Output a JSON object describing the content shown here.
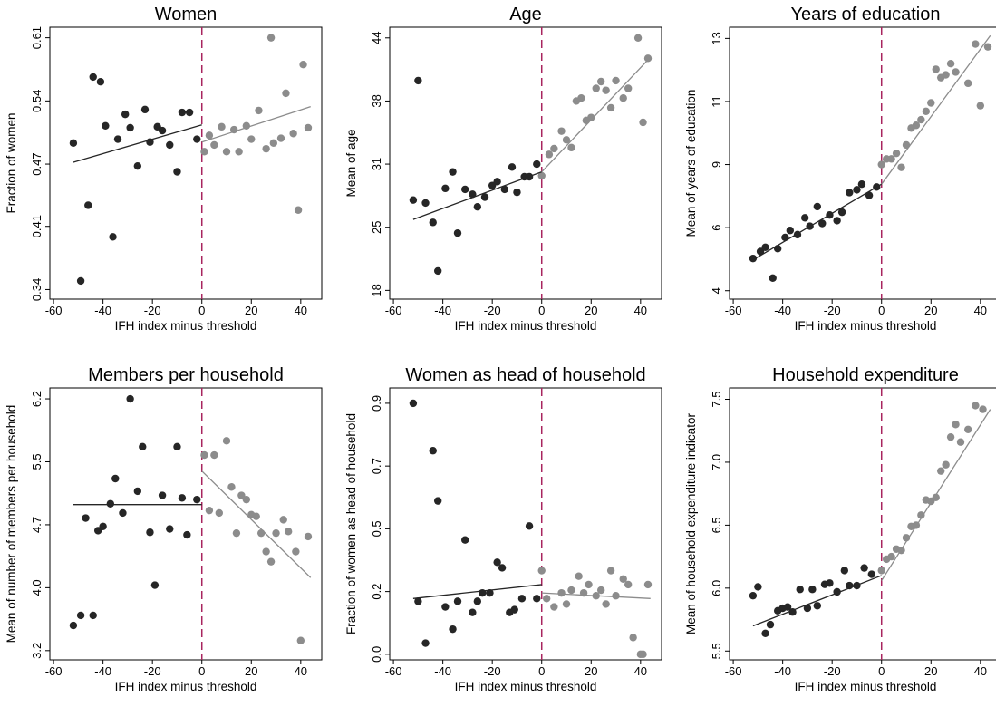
{
  "chart_data": [
    {
      "type": "scatter",
      "title": "Women",
      "x_label": "IFH index minus threshold",
      "y_label": "Fraction of women",
      "xlim": [
        -61.5,
        48.5
      ],
      "xticks": [
        -60,
        -40,
        -20,
        0,
        20,
        40
      ],
      "ylim": [
        0.333,
        0.617
      ],
      "yticks": [
        {
          "value": 0.343,
          "label": "0.34"
        },
        {
          "value": 0.409,
          "label": "0.41"
        },
        {
          "value": 0.474,
          "label": "0.47"
        },
        {
          "value": 0.54,
          "label": "0.54"
        },
        {
          "value": 0.606,
          "label": "0.61"
        }
      ],
      "threshold": 0,
      "threshold_color": "#a8245e",
      "series": [
        {
          "color": "#262626",
          "x": [
            -52,
            -49,
            -46,
            -44,
            -41,
            -39,
            -36,
            -34,
            -31,
            -29,
            -26,
            -23,
            -21,
            -18,
            -16,
            -13,
            -10,
            -8,
            -5,
            -2
          ],
          "values": [
            0.496,
            0.352,
            0.431,
            0.565,
            0.56,
            0.514,
            0.398,
            0.5,
            0.526,
            0.512,
            0.472,
            0.531,
            0.497,
            0.513,
            0.509,
            0.494,
            0.466,
            0.528,
            0.528,
            0.5
          ]
        },
        {
          "color": "#8c8c8c",
          "x": [
            1,
            3,
            5,
            8,
            10,
            13,
            15,
            18,
            20,
            23,
            26,
            28,
            29,
            32,
            34,
            37,
            39,
            41,
            43
          ],
          "values": [
            0.487,
            0.504,
            0.494,
            0.513,
            0.487,
            0.51,
            0.487,
            0.514,
            0.5,
            0.53,
            0.49,
            0.606,
            0.496,
            0.501,
            0.548,
            0.506,
            0.426,
            0.578,
            0.512
          ]
        }
      ],
      "fits": [
        {
          "color": "#262626",
          "x": [
            -52,
            0
          ],
          "values": [
            0.476,
            0.515
          ]
        },
        {
          "color": "#8c8c8c",
          "x": [
            0,
            44
          ],
          "values": [
            0.497,
            0.534
          ]
        }
      ]
    },
    {
      "type": "scatter",
      "title": "Age",
      "x_label": "IFH index minus threshold",
      "y_label": "Mean of age",
      "xlim": [
        -61.5,
        48.5
      ],
      "xticks": [
        -60,
        -40,
        -20,
        0,
        20,
        40
      ],
      "ylim": [
        17.1,
        45.1
      ],
      "yticks": [
        18,
        {
          "value": 24.5,
          "label": "25"
        },
        31,
        {
          "value": 37.5,
          "label": "38"
        },
        44
      ],
      "threshold": 0,
      "threshold_color": "#a8245e",
      "series": [
        {
          "color": "#262626",
          "x": [
            -52,
            -50,
            -47,
            -44,
            -42,
            -39,
            -36,
            -34,
            -31,
            -28,
            -26,
            -23,
            -20,
            -18,
            -15,
            -12,
            -10,
            -7,
            -5,
            -2
          ],
          "values": [
            27.3,
            39.6,
            27.0,
            25.0,
            20.0,
            28.5,
            30.2,
            23.9,
            28.4,
            27.9,
            26.6,
            27.6,
            28.8,
            29.2,
            28.4,
            30.7,
            28.1,
            29.7,
            29.7,
            31.0
          ]
        },
        {
          "color": "#8c8c8c",
          "x": [
            0,
            3,
            5,
            8,
            10,
            12,
            14,
            16,
            18,
            20,
            22,
            24,
            26,
            28,
            30,
            33,
            35,
            39,
            41,
            43
          ],
          "values": [
            29.8,
            32.0,
            32.6,
            34.4,
            33.5,
            32.7,
            37.5,
            37.8,
            35.5,
            35.8,
            38.8,
            39.5,
            38.6,
            36.8,
            39.6,
            37.8,
            38.8,
            44.0,
            35.3,
            41.9
          ]
        }
      ],
      "fits": [
        {
          "color": "#262626",
          "x": [
            -52,
            0
          ],
          "values": [
            25.3,
            30.2
          ]
        },
        {
          "color": "#8c8c8c",
          "x": [
            0,
            44
          ],
          "values": [
            30.2,
            42.0
          ]
        }
      ]
    },
    {
      "type": "scatter",
      "title": "Years of education",
      "x_label": "IFH index minus threshold",
      "y_label": "Mean of years of education",
      "xlim": [
        -61.5,
        48.5
      ],
      "xticks": [
        -60,
        -40,
        -20,
        0,
        20,
        40
      ],
      "ylim": [
        3.7,
        13.4
      ],
      "yticks": [
        4,
        {
          "value": 6.25,
          "label": "6"
        },
        {
          "value": 8.5,
          "label": "9"
        },
        {
          "value": 10.75,
          "label": "11"
        },
        13
      ],
      "threshold": 0,
      "threshold_color": "#a8245e",
      "series": [
        {
          "color": "#262626",
          "x": [
            -52,
            -49,
            -47,
            -44,
            -42,
            -39,
            -37,
            -34,
            -31,
            -29,
            -26,
            -24,
            -21,
            -18,
            -16,
            -13,
            -10,
            -8,
            -5,
            -2
          ],
          "values": [
            5.15,
            5.4,
            5.55,
            4.45,
            5.5,
            5.9,
            6.15,
            6.0,
            6.6,
            6.3,
            7.0,
            6.4,
            6.7,
            6.5,
            6.8,
            7.5,
            7.6,
            7.8,
            7.4,
            7.7
          ]
        },
        {
          "color": "#8c8c8c",
          "x": [
            0,
            2,
            4,
            6,
            8,
            10,
            12,
            14,
            16,
            18,
            20,
            22,
            24,
            26,
            28,
            30,
            35,
            38,
            40,
            43
          ],
          "values": [
            8.5,
            8.7,
            8.7,
            8.9,
            8.4,
            9.2,
            9.8,
            9.9,
            10.1,
            10.4,
            10.7,
            11.9,
            11.6,
            11.7,
            12.1,
            11.8,
            11.4,
            12.8,
            10.6,
            12.7
          ]
        }
      ],
      "fits": [
        {
          "color": "#262626",
          "x": [
            -52,
            0
          ],
          "values": [
            5.1,
            7.8
          ]
        },
        {
          "color": "#8c8c8c",
          "x": [
            0,
            44
          ],
          "values": [
            7.8,
            13.1
          ]
        }
      ]
    },
    {
      "type": "scatter",
      "title": "Members per household",
      "x_label": "IFH index minus threshold",
      "y_label": "Mean of number of members per household",
      "xlim": [
        -61.5,
        48.5
      ],
      "xticks": [
        -60,
        -40,
        -20,
        0,
        20,
        40
      ],
      "ylim": [
        3.09,
        6.33
      ],
      "yticks": [
        3.2,
        {
          "value": 3.95,
          "label": "4.0"
        },
        4.7,
        {
          "value": 5.45,
          "label": "5.5"
        },
        6.2
      ],
      "threshold": 0,
      "threshold_color": "#a8245e",
      "series": [
        {
          "color": "#262626",
          "x": [
            -52,
            -49,
            -47,
            -44,
            -42,
            -40,
            -37,
            -35,
            -32,
            -29,
            -26,
            -24,
            -21,
            -19,
            -16,
            -13,
            -10,
            -8,
            -6,
            -2
          ],
          "values": [
            3.5,
            3.62,
            4.78,
            3.62,
            4.63,
            4.68,
            4.95,
            5.25,
            4.84,
            6.2,
            5.1,
            5.63,
            4.61,
            3.98,
            5.05,
            4.65,
            5.63,
            5.02,
            4.58,
            5.0
          ]
        },
        {
          "color": "#8c8c8c",
          "x": [
            1,
            3,
            5,
            7,
            10,
            12,
            14,
            16,
            18,
            20,
            22,
            24,
            26,
            28,
            30,
            33,
            35,
            38,
            40,
            43
          ],
          "values": [
            5.53,
            4.87,
            5.53,
            4.84,
            5.7,
            5.15,
            4.6,
            5.05,
            5.0,
            4.82,
            4.8,
            4.6,
            4.38,
            4.26,
            4.6,
            4.76,
            4.62,
            4.38,
            3.32,
            4.56
          ]
        }
      ],
      "fits": [
        {
          "color": "#262626",
          "x": [
            -52,
            0
          ],
          "values": [
            4.94,
            4.94
          ]
        },
        {
          "color": "#8c8c8c",
          "x": [
            0,
            44
          ],
          "values": [
            5.34,
            4.07
          ]
        }
      ]
    },
    {
      "type": "scatter",
      "title": "Women as head of household",
      "x_label": "IFH index minus threshold",
      "y_label": "Fraction of women as head of household",
      "xlim": [
        -61.5,
        48.5
      ],
      "xticks": [
        -60,
        -40,
        -20,
        0,
        20,
        40
      ],
      "ylim": [
        -0.02,
        0.955
      ],
      "yticks": [
        {
          "value": 0,
          "label": "0.0"
        },
        {
          "value": 0.225,
          "label": "0.2"
        },
        {
          "value": 0.45,
          "label": "0.5"
        },
        {
          "value": 0.675,
          "label": "0.7"
        },
        0.9
      ],
      "threshold": 0,
      "threshold_color": "#a8245e",
      "series": [
        {
          "color": "#262626",
          "x": [
            -52,
            -50,
            -47,
            -44,
            -42,
            -39,
            -36,
            -34,
            -31,
            -28,
            -26,
            -24,
            -21,
            -18,
            -16,
            -13,
            -11,
            -8,
            -5,
            -2
          ],
          "values": [
            0.9,
            0.19,
            0.04,
            0.73,
            0.55,
            0.17,
            0.09,
            0.19,
            0.41,
            0.15,
            0.19,
            0.22,
            0.22,
            0.33,
            0.31,
            0.15,
            0.16,
            0.2,
            0.46,
            0.2
          ]
        },
        {
          "color": "#8c8c8c",
          "x": [
            0,
            2,
            5,
            8,
            10,
            12,
            15,
            17,
            19,
            22,
            24,
            26,
            28,
            30,
            33,
            35,
            37,
            40,
            41,
            43
          ],
          "values": [
            0.3,
            0.2,
            0.17,
            0.22,
            0.18,
            0.23,
            0.28,
            0.22,
            0.25,
            0.21,
            0.23,
            0.18,
            0.3,
            0.21,
            0.27,
            0.25,
            0.06,
            0,
            0,
            0.25
          ]
        }
      ],
      "fits": [
        {
          "color": "#262626",
          "x": [
            -52,
            0
          ],
          "values": [
            0.2,
            0.25
          ]
        },
        {
          "color": "#8c8c8c",
          "x": [
            0,
            44
          ],
          "values": [
            0.22,
            0.2
          ]
        }
      ]
    },
    {
      "type": "scatter",
      "title": "Household expenditure",
      "x_label": "IFH index minus threshold",
      "y_label": "Mean of household expenditure indicator",
      "xlim": [
        -61.5,
        48.5
      ],
      "xticks": [
        -60,
        -40,
        -20,
        0,
        20,
        40
      ],
      "ylim": [
        5.43,
        7.59
      ],
      "yticks": [
        5.5,
        {
          "value": 6,
          "label": "6.0"
        },
        6.5,
        {
          "value": 7,
          "label": "7.0"
        },
        7.5
      ],
      "threshold": 0,
      "threshold_color": "#a8245e",
      "series": [
        {
          "color": "#262626",
          "x": [
            -52,
            -50,
            -47,
            -45,
            -42,
            -40,
            -38,
            -36,
            -33,
            -30,
            -28,
            -26,
            -23,
            -21,
            -18,
            -15,
            -13,
            -10,
            -7,
            -4
          ],
          "values": [
            5.94,
            6.01,
            5.64,
            5.71,
            5.82,
            5.84,
            5.85,
            5.81,
            5.99,
            5.84,
            5.99,
            5.86,
            6.03,
            6.04,
            5.97,
            6.14,
            6.02,
            6.02,
            6.16,
            6.11
          ]
        },
        {
          "color": "#8c8c8c",
          "x": [
            0,
            2,
            4,
            6,
            8,
            10,
            12,
            14,
            16,
            18,
            20,
            22,
            24,
            26,
            28,
            30,
            32,
            35,
            38,
            41
          ],
          "values": [
            6.14,
            6.23,
            6.25,
            6.31,
            6.3,
            6.4,
            6.49,
            6.5,
            6.58,
            6.7,
            6.69,
            6.72,
            6.93,
            6.98,
            7.2,
            7.3,
            7.16,
            7.26,
            7.45,
            7.42
          ]
        }
      ],
      "fits": [
        {
          "color": "#262626",
          "x": [
            -52,
            0
          ],
          "values": [
            5.7,
            6.1
          ]
        },
        {
          "color": "#8c8c8c",
          "x": [
            0,
            44
          ],
          "values": [
            6.06,
            7.42
          ]
        }
      ]
    }
  ]
}
